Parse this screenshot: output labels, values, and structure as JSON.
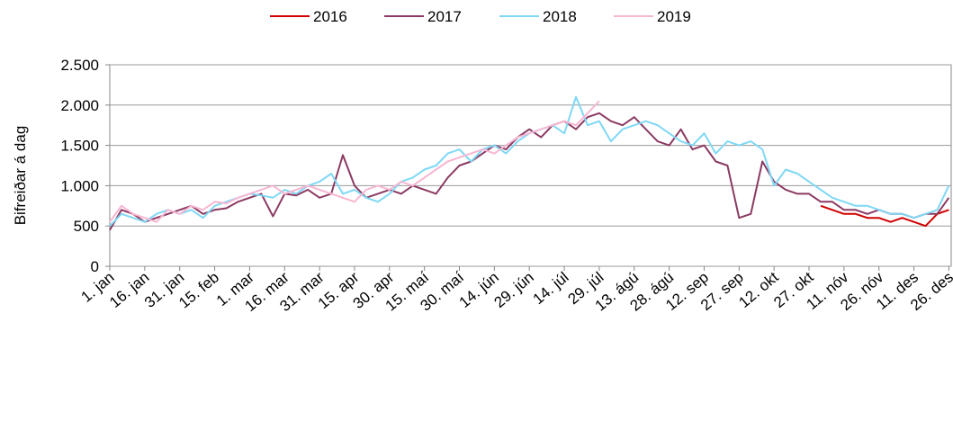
{
  "chart_data": {
    "type": "line",
    "y_label": "Bifreiðar á dag",
    "x": [
      1,
      6,
      11,
      16,
      21,
      26,
      31,
      36,
      41,
      46,
      51,
      56,
      61,
      66,
      71,
      76,
      81,
      86,
      91,
      96,
      101,
      106,
      111,
      116,
      121,
      126,
      131,
      136,
      141,
      146,
      151,
      156,
      161,
      166,
      171,
      176,
      181,
      186,
      191,
      196,
      201,
      206,
      211,
      216,
      221,
      226,
      231,
      236,
      241,
      246,
      251,
      256,
      261,
      266,
      271,
      276,
      281,
      286,
      291,
      296,
      301,
      306,
      311,
      316,
      321,
      326,
      331,
      336,
      341,
      346,
      351,
      356,
      361
    ],
    "xlim": [
      1,
      362
    ],
    "xticks": [
      {
        "value": 1,
        "label": "1. jan"
      },
      {
        "value": 16,
        "label": "16. jan"
      },
      {
        "value": 31,
        "label": "31. jan"
      },
      {
        "value": 46,
        "label": "15. feb"
      },
      {
        "value": 61,
        "label": "1. mar"
      },
      {
        "value": 76,
        "label": "16. mar"
      },
      {
        "value": 91,
        "label": "31. mar"
      },
      {
        "value": 106,
        "label": "15. apr"
      },
      {
        "value": 121,
        "label": "30. apr"
      },
      {
        "value": 136,
        "label": "15. maí"
      },
      {
        "value": 151,
        "label": "30. maí"
      },
      {
        "value": 166,
        "label": "14. jún"
      },
      {
        "value": 181,
        "label": "29. jún"
      },
      {
        "value": 196,
        "label": "14. júl"
      },
      {
        "value": 211,
        "label": "29. júl"
      },
      {
        "value": 226,
        "label": "13. ágú"
      },
      {
        "value": 241,
        "label": "28. ágú"
      },
      {
        "value": 256,
        "label": "12. sep"
      },
      {
        "value": 271,
        "label": "27. sep"
      },
      {
        "value": 286,
        "label": "12. okt"
      },
      {
        "value": 301,
        "label": "27. okt"
      },
      {
        "value": 316,
        "label": "11. nóv"
      },
      {
        "value": 331,
        "label": "26. nóv"
      },
      {
        "value": 346,
        "label": "11. des"
      },
      {
        "value": 361,
        "label": "26. des"
      }
    ],
    "ylim": [
      0,
      2500
    ],
    "yticks": [
      0,
      500,
      {
        "value": 1000,
        "label": "1.000"
      },
      {
        "value": 1500,
        "label": "1.500"
      },
      {
        "value": 2000,
        "label": "2.000"
      },
      {
        "value": 2500,
        "label": "2.500"
      }
    ],
    "grid": true,
    "legend": "top",
    "series": [
      {
        "name": "2016",
        "color": "#d00000",
        "values": [
          null,
          null,
          null,
          null,
          null,
          null,
          null,
          null,
          null,
          null,
          null,
          null,
          null,
          null,
          null,
          null,
          null,
          null,
          null,
          null,
          null,
          null,
          null,
          null,
          null,
          null,
          null,
          null,
          null,
          null,
          null,
          null,
          null,
          null,
          null,
          null,
          null,
          null,
          null,
          null,
          null,
          null,
          null,
          null,
          null,
          null,
          null,
          null,
          null,
          null,
          null,
          null,
          null,
          null,
          null,
          null,
          null,
          null,
          null,
          null,
          null,
          750,
          700,
          650,
          650,
          600,
          600,
          550,
          600,
          550,
          500,
          650,
          700
        ]
      },
      {
        "name": "2017",
        "color": "#8b3a62",
        "values": [
          450,
          700,
          650,
          550,
          600,
          650,
          700,
          750,
          650,
          700,
          720,
          800,
          850,
          900,
          620,
          900,
          880,
          950,
          850,
          900,
          1380,
          1000,
          850,
          900,
          950,
          900,
          1000,
          950,
          900,
          1100,
          1250,
          1300,
          1400,
          1500,
          1450,
          1600,
          1700,
          1600,
          1750,
          1800,
          1700,
          1850,
          1900,
          1800,
          1750,
          1850,
          1700,
          1550,
          1500,
          1700,
          1450,
          1500,
          1300,
          1250,
          600,
          650,
          1300,
          1050,
          950,
          900,
          900,
          800,
          800,
          700,
          700,
          650,
          700,
          650,
          650,
          600,
          650,
          650,
          850
        ]
      },
      {
        "name": "2018",
        "color": "#7fd8f5",
        "values": [
          500,
          650,
          600,
          550,
          650,
          700,
          650,
          700,
          600,
          750,
          800,
          850,
          900,
          880,
          850,
          950,
          900,
          1000,
          1050,
          1150,
          900,
          950,
          850,
          800,
          900,
          1050,
          1100,
          1200,
          1250,
          1400,
          1450,
          1300,
          1450,
          1500,
          1400,
          1550,
          1650,
          1700,
          1750,
          1650,
          2100,
          1750,
          1800,
          1550,
          1700,
          1750,
          1800,
          1750,
          1650,
          1550,
          1500,
          1650,
          1400,
          1550,
          1500,
          1550,
          1450,
          1000,
          1200,
          1150,
          1050,
          950,
          850,
          800,
          750,
          750,
          700,
          650,
          650,
          600,
          650,
          700,
          1000
        ]
      },
      {
        "name": "2019",
        "color": "#f7b6d2",
        "values": [
          550,
          750,
          650,
          600,
          550,
          700,
          650,
          750,
          700,
          800,
          780,
          850,
          900,
          950,
          1000,
          900,
          950,
          1000,
          950,
          900,
          850,
          800,
          950,
          1000,
          950,
          1050,
          1000,
          1100,
          1200,
          1300,
          1350,
          1400,
          1450,
          1400,
          1500,
          1600,
          1650,
          1700,
          1750,
          1800,
          1750,
          1900,
          2050,
          null,
          null,
          null,
          null,
          null,
          null,
          null,
          null,
          null,
          null,
          null,
          null,
          null,
          null,
          null,
          null,
          null,
          null,
          null,
          null,
          null,
          null,
          null,
          null,
          null,
          null,
          null,
          null,
          null,
          null
        ]
      }
    ]
  }
}
